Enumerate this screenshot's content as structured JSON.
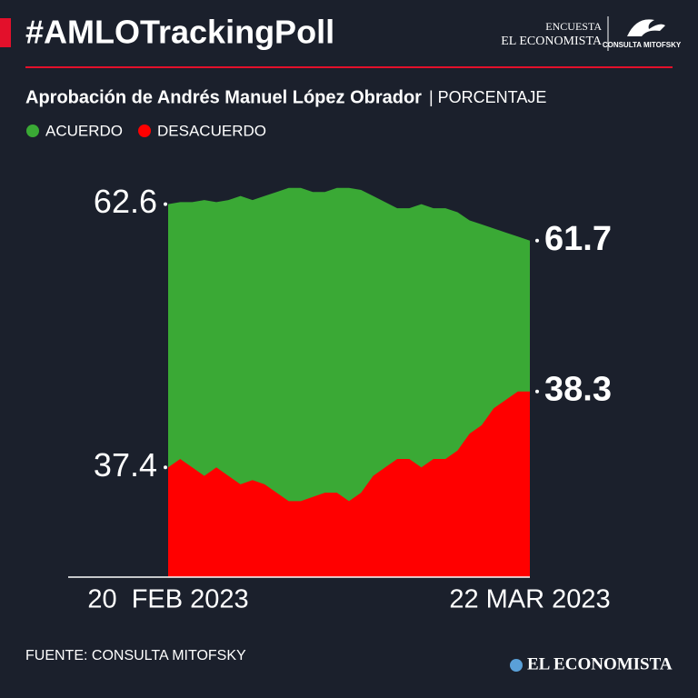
{
  "header": {
    "title": "#AMLOTrackingPoll",
    "logo_top": "ENCUESTA",
    "logo_bottom": "EL ECONOMISTA",
    "logo_mark": "CONSULTA MITOFSKY"
  },
  "chart_data": {
    "type": "area",
    "title": "Aprobación de Andrés Manuel López Obrador",
    "unit": "| PORCENTAJE",
    "categories": [
      "20  FEB 2023",
      null,
      null,
      null,
      null,
      null,
      null,
      null,
      null,
      null,
      null,
      null,
      null,
      null,
      null,
      null,
      null,
      null,
      null,
      null,
      null,
      null,
      null,
      null,
      null,
      null,
      null,
      null,
      null,
      null,
      "22 MAR 2023"
    ],
    "series": [
      {
        "name": "ACUERDO",
        "color": "#3aa935",
        "axis": "y2",
        "values": [
          62.6,
          62.65,
          62.65,
          62.7,
          62.65,
          62.7,
          62.8,
          62.7,
          62.8,
          62.9,
          63.0,
          63.0,
          62.9,
          62.9,
          63.0,
          63.0,
          62.95,
          62.8,
          62.65,
          62.5,
          62.5,
          62.6,
          62.5,
          62.5,
          62.4,
          62.2,
          62.1,
          62.0,
          61.9,
          61.8,
          61.7
        ]
      },
      {
        "name": "DESACUERDO",
        "color": "#ff0000",
        "values": [
          37.4,
          37.5,
          37.4,
          37.3,
          37.4,
          37.3,
          37.2,
          37.25,
          37.2,
          37.1,
          37.0,
          37.0,
          37.05,
          37.1,
          37.1,
          37.0,
          37.1,
          37.3,
          37.4,
          37.5,
          37.5,
          37.4,
          37.5,
          37.5,
          37.6,
          37.8,
          37.9,
          38.1,
          38.2,
          38.3,
          38.3
        ]
      }
    ],
    "ylim": [
      36.1,
      41.0
    ],
    "y2lim": [
      53.4,
      63.6
    ],
    "legend": "top-left"
  },
  "footer": {
    "source": "FUENTE: CONSULTA MITOFSKY",
    "brand": "EL ECONOMISTA"
  }
}
